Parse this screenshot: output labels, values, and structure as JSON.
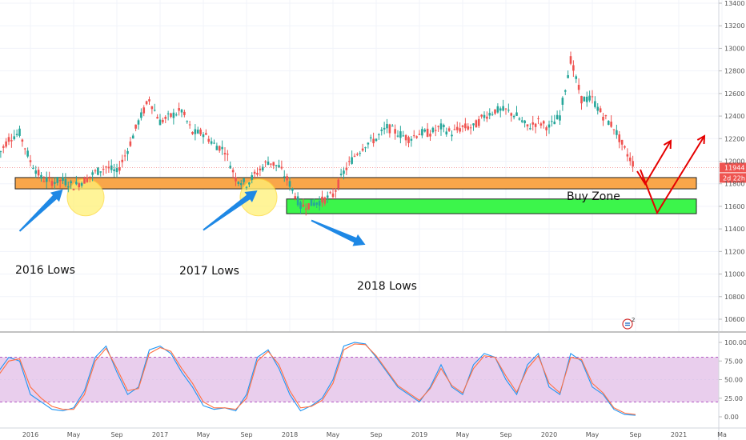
{
  "chart_data": [
    {
      "type": "candlestick",
      "title": "",
      "y_axis": {
        "ticks": [
          10600,
          10800,
          11000,
          11200,
          11400,
          11600,
          11800,
          12000,
          12200,
          12400,
          12600,
          12800,
          13000,
          13200,
          13400
        ],
        "ylim": [
          10500,
          13420
        ]
      },
      "x_axis": {
        "tick_labels": [
          "2016",
          "May",
          "Sep",
          "2017",
          "May",
          "Sep",
          "2018",
          "May",
          "Sep",
          "2019",
          "May",
          "Sep",
          "2020",
          "May",
          "Sep",
          "2021",
          "Ma"
        ],
        "range": [
          "2015-10",
          "2021-05"
        ]
      },
      "path_points": [
        [
          "2015-10",
          12050
        ],
        [
          "2015-11",
          12200
        ],
        [
          "2015-12",
          12250
        ],
        [
          "2016-01",
          12000
        ],
        [
          "2016-02",
          11850
        ],
        [
          "2016-03",
          11820
        ],
        [
          "2016-04",
          11830
        ],
        [
          "2016-05",
          11780
        ],
        [
          "2016-06",
          11830
        ],
        [
          "2016-07",
          11900
        ],
        [
          "2016-08",
          11950
        ],
        [
          "2016-09",
          11900
        ],
        [
          "2016-10",
          12100
        ],
        [
          "2016-11",
          12350
        ],
        [
          "2016-12",
          12550
        ],
        [
          "2017-01",
          12350
        ],
        [
          "2017-02",
          12400
        ],
        [
          "2017-03",
          12450
        ],
        [
          "2017-04",
          12250
        ],
        [
          "2017-05",
          12250
        ],
        [
          "2017-06",
          12150
        ],
        [
          "2017-07",
          12100
        ],
        [
          "2017-08",
          11850
        ],
        [
          "2017-09",
          11800
        ],
        [
          "2017-10",
          11900
        ],
        [
          "2017-11",
          12000
        ],
        [
          "2017-12",
          11950
        ],
        [
          "2018-01",
          11800
        ],
        [
          "2018-02",
          11600
        ],
        [
          "2018-03",
          11620
        ],
        [
          "2018-04",
          11650
        ],
        [
          "2018-05",
          11700
        ],
        [
          "2018-06",
          11900
        ],
        [
          "2018-07",
          12050
        ],
        [
          "2018-08",
          12150
        ],
        [
          "2018-09",
          12200
        ],
        [
          "2018-10",
          12300
        ],
        [
          "2018-11",
          12250
        ],
        [
          "2018-12",
          12200
        ],
        [
          "2019-01",
          12250
        ],
        [
          "2019-02",
          12250
        ],
        [
          "2019-03",
          12300
        ],
        [
          "2019-04",
          12250
        ],
        [
          "2019-05",
          12300
        ],
        [
          "2019-06",
          12300
        ],
        [
          "2019-07",
          12400
        ],
        [
          "2019-08",
          12450
        ],
        [
          "2019-09",
          12450
        ],
        [
          "2019-10",
          12400
        ],
        [
          "2019-11",
          12300
        ],
        [
          "2019-12",
          12350
        ],
        [
          "2020-01",
          12300
        ],
        [
          "2020-02",
          12400
        ],
        [
          "2020-03",
          12900
        ],
        [
          "2020-04",
          12550
        ],
        [
          "2020-05",
          12550
        ],
        [
          "2020-06",
          12400
        ],
        [
          "2020-07",
          12300
        ],
        [
          "2020-08",
          12100
        ],
        [
          "2020-09",
          11944
        ]
      ],
      "price_label": "11944",
      "countdown_label": "2d 22h",
      "zones": [
        {
          "name": "resistance-support-zone",
          "from": "2015-11",
          "to": "2021-01",
          "y_low": 11755,
          "y_high": 11855,
          "color": "#f9a64a"
        },
        {
          "name": "buy-zone",
          "from": "2018-01",
          "to": "2021-01",
          "y_low": 11535,
          "y_high": 11665,
          "color": "#3cf54b"
        }
      ],
      "annotations": [
        {
          "text": "2016 Lows",
          "x": "2016-01",
          "y": 11330
        },
        {
          "text": "2017 Lows",
          "x": "2017-02",
          "y": 11315
        },
        {
          "text": "2018 Lows",
          "x": "2018-07",
          "y": 11175
        },
        {
          "text": "Buy Zone",
          "x": "2020-06",
          "y": 11700
        }
      ],
      "highlight_circles": [
        {
          "x": "2016-05",
          "y": 11750
        },
        {
          "x": "2017-09",
          "y": 11750
        }
      ],
      "forecast_paths": [
        [
          [
            "2020-09",
            11880
          ],
          [
            "2020-10",
            11810
          ],
          [
            "2020-12",
            12170
          ]
        ],
        [
          [
            "2020-09",
            11830
          ],
          [
            "2020-11",
            11590
          ],
          [
            "2021-04",
            12220
          ]
        ]
      ],
      "arrows": [
        {
          "from": [
            "2016-04",
            11750
          ],
          "to": [
            "2015-12",
            11380
          ]
        },
        {
          "from": [
            "2017-10",
            11740
          ],
          "to": [
            "2017-05",
            11390
          ]
        },
        {
          "from": [
            "2018-08",
            11260
          ],
          "to": [
            "2018-03",
            11475
          ]
        }
      ],
      "colors": {
        "up": "#26a69a",
        "down": "#ef5350",
        "zone_border": "#222222",
        "forecast": "#e50000",
        "arrow": "#1e88e5",
        "circle": "#fff176",
        "price_badge": "#ef5350"
      }
    },
    {
      "type": "line",
      "title": "",
      "y_axis": {
        "ticks": [
          0,
          25,
          50,
          75,
          100
        ],
        "tick_labels": [
          "0.00",
          "25.00",
          "50.00",
          "75.00",
          "100.00"
        ],
        "ylim": [
          -5,
          105
        ]
      },
      "band": {
        "from": 20,
        "to": 80,
        "color": "#e1bee7"
      },
      "x": [
        "2015-10",
        "2015-11",
        "2015-12",
        "2016-01",
        "2016-02",
        "2016-03",
        "2016-04",
        "2016-05",
        "2016-06",
        "2016-07",
        "2016-08",
        "2016-09",
        "2016-10",
        "2016-11",
        "2016-12",
        "2017-01",
        "2017-02",
        "2017-03",
        "2017-04",
        "2017-05",
        "2017-06",
        "2017-07",
        "2017-08",
        "2017-09",
        "2017-10",
        "2017-11",
        "2017-12",
        "2018-01",
        "2018-02",
        "2018-03",
        "2018-04",
        "2018-05",
        "2018-06",
        "2018-07",
        "2018-08",
        "2018-09",
        "2018-10",
        "2018-11",
        "2018-12",
        "2019-01",
        "2019-02",
        "2019-03",
        "2019-04",
        "2019-05",
        "2019-06",
        "2019-07",
        "2019-08",
        "2019-09",
        "2019-10",
        "2019-11",
        "2019-12",
        "2020-01",
        "2020-02",
        "2020-03",
        "2020-04",
        "2020-05",
        "2020-06",
        "2020-07",
        "2020-08",
        "2020-09"
      ],
      "series": [
        {
          "color": "#2196f3",
          "values": [
            60,
            80,
            75,
            30,
            20,
            10,
            8,
            12,
            35,
            80,
            95,
            60,
            30,
            40,
            90,
            95,
            85,
            60,
            40,
            15,
            10,
            12,
            8,
            30,
            80,
            90,
            65,
            30,
            8,
            15,
            25,
            50,
            95,
            100,
            98,
            80,
            60,
            40,
            30,
            20,
            40,
            70,
            40,
            30,
            70,
            85,
            80,
            50,
            30,
            70,
            85,
            40,
            30,
            85,
            75,
            40,
            30,
            10,
            3,
            2
          ]
        },
        {
          "color": "#ff7043",
          "values": [
            55,
            75,
            78,
            40,
            25,
            14,
            10,
            10,
            30,
            75,
            92,
            65,
            35,
            38,
            85,
            93,
            88,
            65,
            45,
            20,
            12,
            12,
            10,
            25,
            75,
            88,
            70,
            35,
            12,
            14,
            22,
            45,
            90,
            98,
            97,
            82,
            62,
            42,
            32,
            22,
            38,
            65,
            42,
            32,
            65,
            82,
            80,
            55,
            33,
            65,
            82,
            45,
            32,
            80,
            77,
            45,
            32,
            12,
            5,
            3
          ]
        }
      ]
    }
  ]
}
